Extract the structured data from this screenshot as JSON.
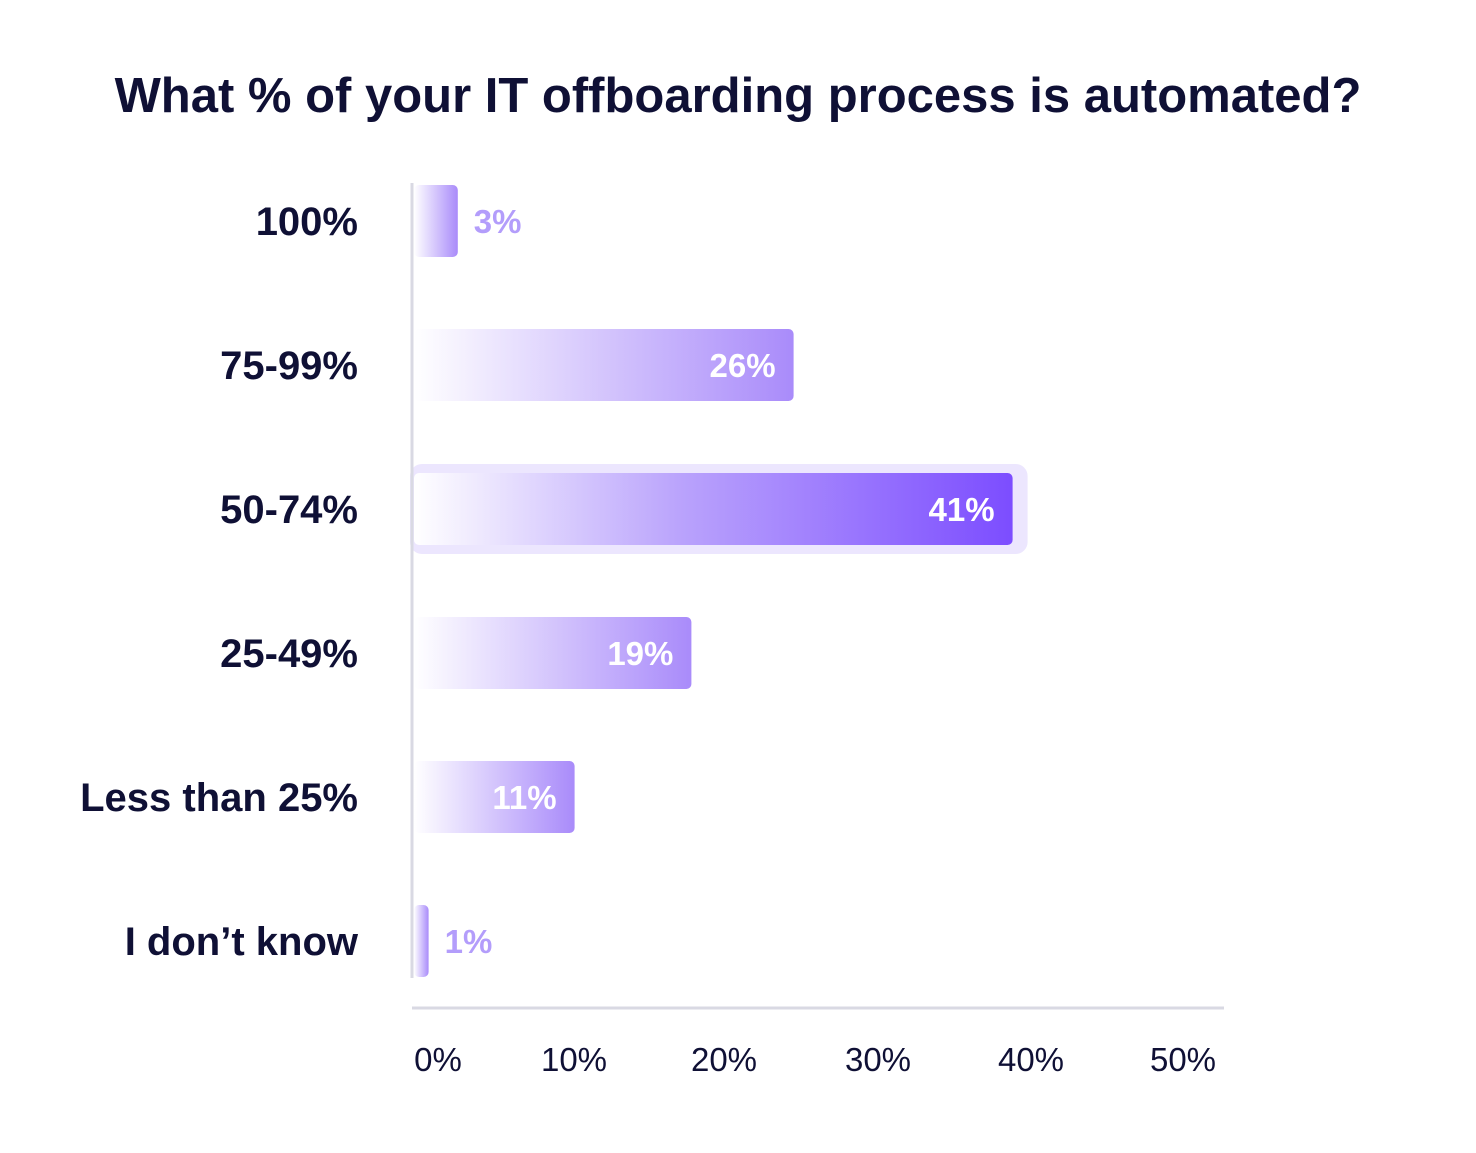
{
  "chart_data": {
    "type": "bar",
    "orientation": "horizontal",
    "title": "What % of your IT offboarding process is automated?",
    "categories": [
      "100%",
      "75-99%",
      "50-74%",
      "25-49%",
      "Less than 25%",
      "I don’t know"
    ],
    "values": [
      3,
      26,
      41,
      19,
      11,
      1
    ],
    "value_labels": [
      "3%",
      "26%",
      "41%",
      "19%",
      "11%",
      "1%"
    ],
    "highlight_index": 2,
    "xlim": [
      0,
      50
    ],
    "xticks": [
      0,
      10,
      20,
      30,
      40,
      50
    ],
    "xtick_labels": [
      "0%",
      "10%",
      "20%",
      "30%",
      "40%",
      "50%"
    ],
    "grid": false,
    "colors": {
      "bar_start": "#ffffff",
      "bar_end": "#a98bfa",
      "highlight_end": "#7c4dff",
      "highlight_halo": "#ece6fe",
      "axis": "#d9d9e3",
      "text": "#0f1035",
      "label_outside": "#b39dfb"
    }
  }
}
